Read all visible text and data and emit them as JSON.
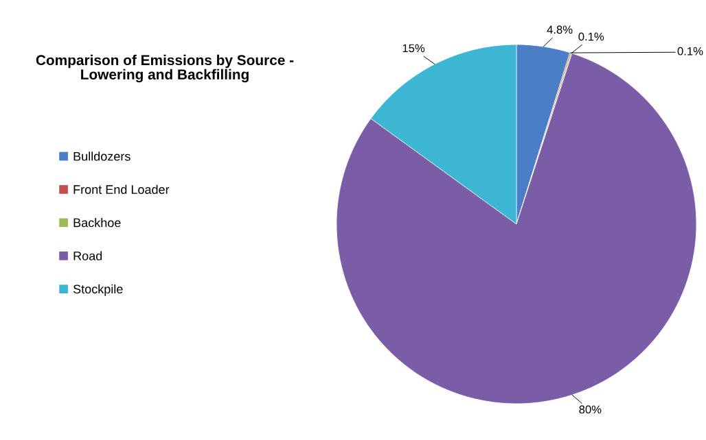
{
  "chart_data": {
    "type": "pie",
    "title": "Comparison of Emissions by Source -\nLowering and Backfilling",
    "categories": [
      "Bulldozers",
      "Front End Loader",
      "Backhoe",
      "Road",
      "Stockpile"
    ],
    "values": [
      4.8,
      0.1,
      0.1,
      80,
      15
    ],
    "value_labels": [
      "4.8%",
      "0.1%",
      "0.1%",
      "80%",
      "15%"
    ],
    "colors": [
      "#4a7ec6",
      "#c0504d",
      "#9bbb59",
      "#7b5ca6",
      "#3cb6d3"
    ],
    "legend": "left"
  }
}
